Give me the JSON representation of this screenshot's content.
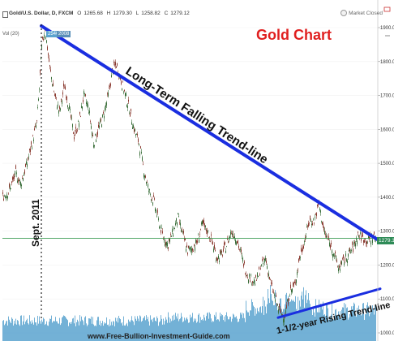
{
  "legend": {
    "symbol": "Gold/U.S. Dollar, D, FXCM",
    "ohlc": [
      {
        "key": "O",
        "value": "1265.68"
      },
      {
        "key": "H",
        "value": "1279.30"
      },
      {
        "key": "L",
        "value": "1258.82"
      },
      {
        "key": "C",
        "value": "1279.12"
      }
    ],
    "volume_label": "Vol (20)",
    "volume_value": "2540",
    "volume_value2": "2008",
    "market_status": "Market Closed"
  },
  "title": "Gold Chart",
  "annotations": {
    "long_term": "Long-Term Falling Trend-line",
    "rising": "1-1/2-year Rising Trend-line",
    "sept": "Sept. 2011",
    "watermark": "www.Free-Bullion-Investment-Guide.com"
  },
  "price_axis": {
    "ticks": [
      "1900.00",
      "1800.00",
      "1700.00",
      "1600.00",
      "1500.00",
      "1400.00",
      "1300.00",
      "1200.00",
      "1100.00",
      "1000.00"
    ],
    "current_price": "1279.12"
  },
  "colors": {
    "up_candle": "#3a6e3a",
    "down_candle": "#8a3a30",
    "trend_line": "#1a2ee0",
    "title": "#e02020",
    "volume": "#5ba3cf",
    "price_line": "#3a9a50",
    "badge": "#2e8b57"
  },
  "chart_data": {
    "type": "candlestick",
    "title": "Gold Chart",
    "ylim": [
      1000,
      1920
    ],
    "series": [
      {
        "name": "Gold/U.S. Dollar, D, FXCM",
        "index": [
          0,
          8,
          16,
          22,
          30,
          36,
          42,
          45,
          48,
          52,
          58,
          64,
          70,
          76,
          82,
          88,
          94,
          100,
          106,
          112,
          118,
          124,
          130,
          136,
          140,
          144,
          150,
          156,
          162,
          168,
          174,
          180,
          186,
          192,
          198,
          204,
          210,
          216,
          222,
          228,
          234,
          240,
          246,
          252,
          258,
          264,
          270,
          276,
          282,
          288,
          294,
          300,
          306,
          312,
          318,
          324,
          330,
          336,
          342,
          348,
          354,
          360,
          366,
          372,
          378,
          384,
          390,
          396,
          402,
          408,
          414,
          420,
          426,
          432,
          438,
          444,
          450,
          456,
          460
        ],
        "close": [
          1400,
          1420,
          1470,
          1440,
          1500,
          1560,
          1620,
          1720,
          1840,
          1900,
          1780,
          1700,
          1650,
          1730,
          1660,
          1580,
          1620,
          1700,
          1660,
          1560,
          1600,
          1640,
          1700,
          1780,
          1790,
          1760,
          1710,
          1660,
          1600,
          1560,
          1480,
          1420,
          1390,
          1330,
          1280,
          1260,
          1300,
          1340,
          1290,
          1240,
          1250,
          1270,
          1320,
          1300,
          1270,
          1220,
          1230,
          1260,
          1300,
          1280,
          1230,
          1180,
          1160,
          1150,
          1190,
          1220,
          1150,
          1100,
          1060,
          1050,
          1120,
          1140,
          1220,
          1270,
          1330,
          1330,
          1380,
          1300,
          1270,
          1240,
          1190,
          1210,
          1230,
          1250,
          1290,
          1280,
          1270,
          1285,
          1279
        ]
      }
    ],
    "trendlines": [
      {
        "name": "Long-Term Falling Trend-line",
        "from": {
          "index": 48,
          "value": 1905
        },
        "to": {
          "index": 466,
          "value": 1270
        }
      },
      {
        "name": "1-1/2-year Rising Trend-line",
        "from": {
          "index": 340,
          "value": 1045
        },
        "to": {
          "index": 466,
          "value": 1130
        }
      }
    ],
    "price_line": 1279.12
  }
}
